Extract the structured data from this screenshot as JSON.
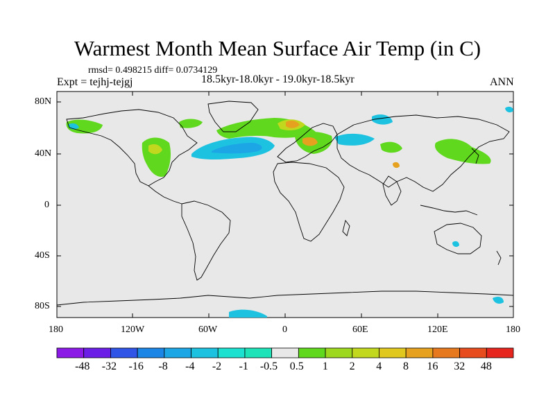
{
  "title": "Warmest Month Mean Surface Air Temp (in C)",
  "stats": "rmsd= 0.498215 diff= 0.0734129",
  "experiment": "Expt = tejhj-tejgj",
  "subtitle": "18.5kyr-18.0kyr - 19.0kyr-18.5kyr",
  "season": "ANN",
  "map": {
    "background_color": "#e8e8e8",
    "y_ticks": [
      "80N",
      "40N",
      "0",
      "40S",
      "80S"
    ],
    "x_ticks": [
      "180",
      "120W",
      "60W",
      "0",
      "60E",
      "120E",
      "180"
    ]
  },
  "colorbar": {
    "labels": [
      "-48",
      "-32",
      "-16",
      "-8",
      "-4",
      "-2",
      "-1",
      "-0.5",
      "0.5",
      "1",
      "2",
      "4",
      "8",
      "16",
      "32",
      "48"
    ],
    "colors": [
      "#8c1ae6",
      "#6a1ee6",
      "#2f54e6",
      "#1c86e6",
      "#1ca6e6",
      "#1cc2e0",
      "#1ce0d0",
      "#1ee2b8",
      "#e8e8e8",
      "#5fd81e",
      "#9ed81e",
      "#c2d81e",
      "#e0c81e",
      "#e6a21e",
      "#e6781e",
      "#e64c1e",
      "#e6261e"
    ]
  }
}
